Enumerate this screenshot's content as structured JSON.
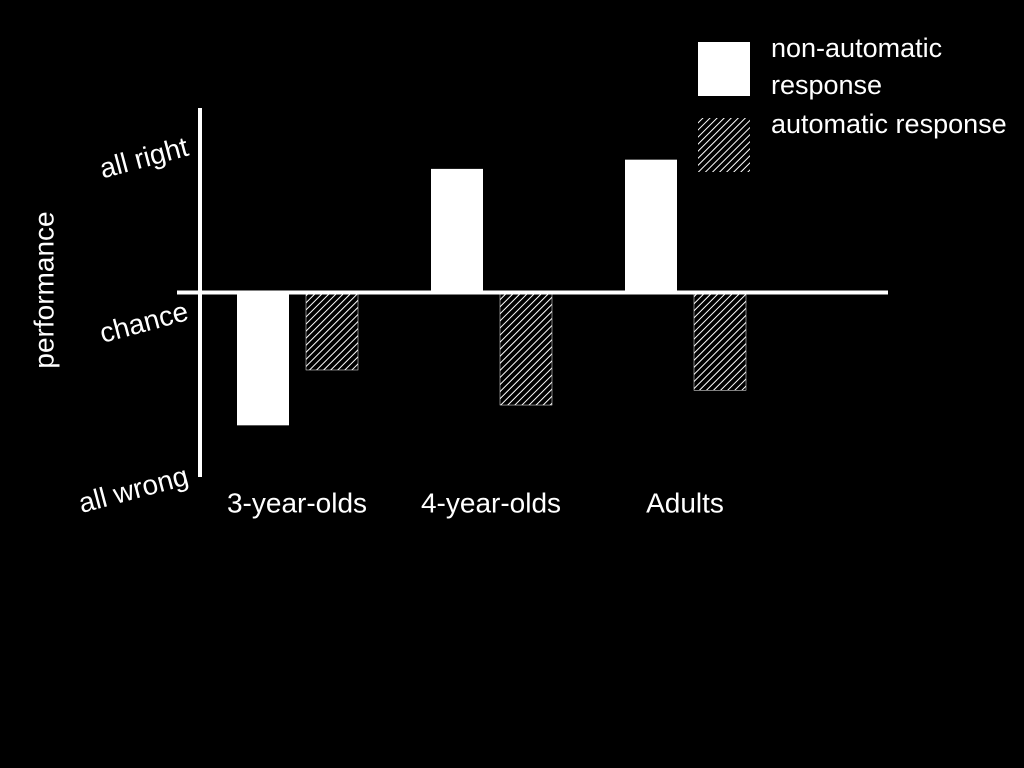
{
  "chart_data": {
    "type": "bar",
    "y_label": "performance",
    "categories": [
      "3-year-olds",
      "4-year-olds",
      "Adults"
    ],
    "series": [
      {
        "name": "non-automatic response",
        "color": "#ffffff",
        "values": [
          -0.72,
          0.67,
          0.72
        ]
      },
      {
        "name": "automatic response",
        "color": "hatched",
        "values": [
          -0.42,
          -0.61,
          -0.53
        ]
      }
    ],
    "ylim": [
      -1,
      1
    ],
    "yticks": [
      {
        "value": 1,
        "label": "all right"
      },
      {
        "value": 0,
        "label": "chance"
      },
      {
        "value": -1,
        "label": "all wrong"
      }
    ],
    "grid": false,
    "legend": "top-right"
  }
}
